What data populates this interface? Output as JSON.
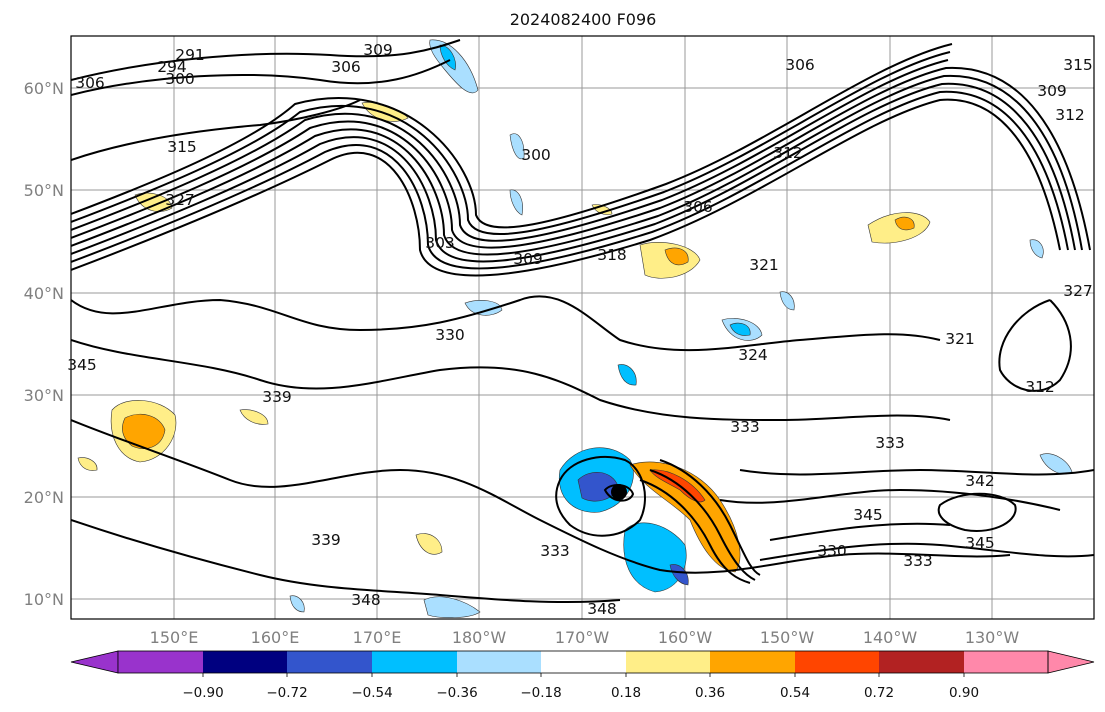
{
  "title": "2024082400 F096",
  "lon_labels": [
    "150°E",
    "160°E",
    "170°E",
    "180°W",
    "170°W",
    "160°W",
    "150°W",
    "140°W",
    "130°W"
  ],
  "lat_labels": [
    "60°N",
    "50°N",
    "40°N",
    "30°N",
    "20°N",
    "10°N"
  ],
  "colorbar": {
    "ticks": [
      "−0.90",
      "−0.72",
      "−0.54",
      "−0.36",
      "−0.18",
      "0.18",
      "0.36",
      "0.54",
      "0.72",
      "0.90"
    ],
    "colors": [
      "#9933cc",
      "#000080",
      "#3355cc",
      "#00bfff",
      "#aadfff",
      "#ffffff",
      "#ffee88",
      "#ffa500",
      "#ff4500",
      "#b22222",
      "#ff88aa"
    ]
  },
  "contour_labels": [
    "291",
    "294",
    "300",
    "309",
    "306",
    "306",
    "315",
    "327",
    "303",
    "309",
    "318",
    "306",
    "300",
    "312",
    "321",
    "324",
    "330",
    "321",
    "312",
    "345",
    "339",
    "333",
    "333",
    "342",
    "345",
    "339",
    "333",
    "330",
    "345",
    "333",
    "348",
    "348",
    "327",
    "306",
    "309",
    "315",
    "312"
  ]
}
